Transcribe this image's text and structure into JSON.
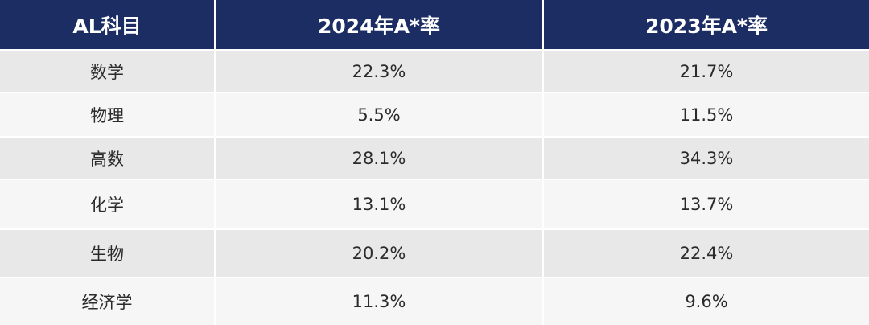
{
  "header": {
    "col1": "AL科目",
    "col2": "2024年A*率",
    "col3": "2023年A*率"
  },
  "rows": [
    {
      "subject": "数学",
      "rate_2024": "22.3%",
      "rate_2023": "21.7%"
    },
    {
      "subject": "物理",
      "rate_2024": "5.5%",
      "rate_2023": "11.5%"
    },
    {
      "subject": "高数",
      "rate_2024": "28.1%",
      "rate_2023": "34.3%"
    },
    {
      "subject": "化学",
      "rate_2024": "13.1%",
      "rate_2023": "13.7%"
    },
    {
      "subject": "生物",
      "rate_2024": "20.2%",
      "rate_2023": "22.4%"
    },
    {
      "subject": "经济学",
      "rate_2024": "11.3%",
      "rate_2023": "9.6%"
    }
  ],
  "colors": {
    "header_bg": "#1b2d63",
    "row_shaded": "#e8e8e8",
    "row_light": "#f6f6f6"
  }
}
